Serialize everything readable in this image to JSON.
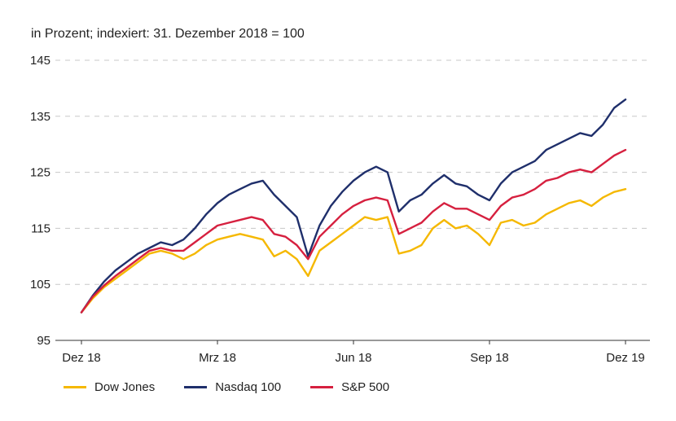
{
  "subtitle": "in Prozent; indexiert: 31. Dezember 2018 = 100",
  "chart_data": {
    "type": "line",
    "title": "",
    "subtitle": "in Prozent; indexiert: 31. Dezember 2018 = 100",
    "xlabel": "",
    "ylabel": "",
    "ylim": [
      95,
      145
    ],
    "yticks": [
      95,
      105,
      115,
      125,
      135,
      145
    ],
    "xticks": [
      {
        "label": "Dez 18",
        "x": 0
      },
      {
        "label": "Mrz 18",
        "x": 3
      },
      {
        "label": "Jun 18",
        "x": 6
      },
      {
        "label": "Sep 18",
        "x": 9
      },
      {
        "label": "Dez 19",
        "x": 12
      }
    ],
    "grid": "horizontal-dashed",
    "legend_position": "bottom-left",
    "x": [
      0,
      0.25,
      0.5,
      0.75,
      1,
      1.25,
      1.5,
      1.75,
      2,
      2.25,
      2.5,
      2.75,
      3,
      3.25,
      3.5,
      3.75,
      4,
      4.25,
      4.5,
      4.75,
      5,
      5.25,
      5.5,
      5.75,
      6,
      6.25,
      6.5,
      6.75,
      7,
      7.25,
      7.5,
      7.75,
      8,
      8.25,
      8.5,
      8.75,
      9,
      9.25,
      9.5,
      9.75,
      10,
      10.25,
      10.5,
      10.75,
      11,
      11.25,
      11.5,
      11.75,
      12
    ],
    "series": [
      {
        "name": "Dow Jones",
        "color": "#f5b800",
        "values": [
          100,
          102.5,
          104.5,
          106,
          107.5,
          109,
          110.5,
          111,
          110.5,
          109.5,
          110.5,
          112,
          113,
          113.5,
          114,
          113.5,
          113,
          110,
          111,
          109.5,
          106.5,
          111,
          112.5,
          114,
          115.5,
          117,
          116.5,
          117,
          110.5,
          111,
          112,
          115,
          116.5,
          115,
          115.5,
          114,
          112,
          116,
          116.5,
          115.5,
          116,
          117.5,
          118.5,
          119.5,
          120,
          119,
          120.5,
          121.5,
          122
        ]
      },
      {
        "name": "Nasdaq 100",
        "color": "#1f2f6b",
        "values": [
          100,
          103,
          105.5,
          107.5,
          109,
          110.5,
          111.5,
          112.5,
          112,
          113,
          115,
          117.5,
          119.5,
          121,
          122,
          123,
          123.5,
          121,
          119,
          117,
          110,
          115.5,
          119,
          121.5,
          123.5,
          125,
          126,
          125,
          118,
          120,
          121,
          123,
          124.5,
          123,
          122.5,
          121,
          120,
          123,
          125,
          126,
          127,
          129,
          130,
          131,
          132,
          131.5,
          133.5,
          136.5,
          138
        ]
      },
      {
        "name": "S&P 500",
        "color": "#d6203f",
        "values": [
          100,
          102.8,
          104.8,
          106.5,
          108,
          109.5,
          111,
          111.5,
          111,
          111,
          112.5,
          114,
          115.5,
          116,
          116.5,
          117,
          116.5,
          114,
          113.5,
          112,
          109.5,
          113.5,
          115.5,
          117.5,
          119,
          120,
          120.5,
          120,
          114,
          115,
          116,
          118,
          119.5,
          118.5,
          118.5,
          117.5,
          116.5,
          119,
          120.5,
          121,
          122,
          123.5,
          124,
          125,
          125.5,
          125,
          126.5,
          128,
          129
        ]
      }
    ]
  }
}
